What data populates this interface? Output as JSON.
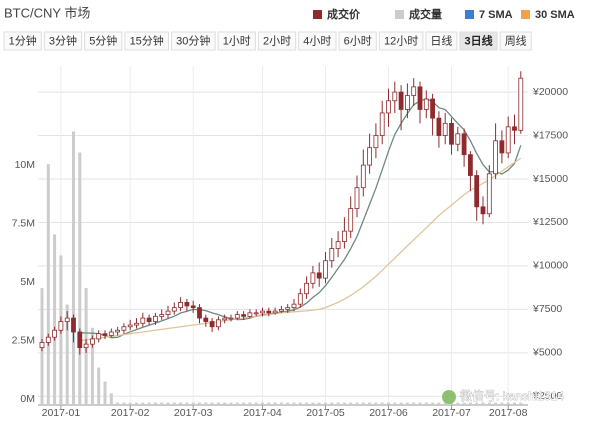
{
  "chart_data": {
    "type": "candlestick",
    "title": "BTC/CNY 市场",
    "timeframes": [
      "1分钟",
      "3分钟",
      "5分钟",
      "15分钟",
      "30分钟",
      "1小时",
      "2小时",
      "4小时",
      "6小时",
      "12小时",
      "日线",
      "3日线",
      "周线"
    ],
    "selected_timeframe_index": 11,
    "categories": [
      null,
      null,
      null,
      "2017-01",
      null,
      null,
      null,
      null,
      null,
      null,
      null,
      null,
      null,
      null,
      "2017-02",
      null,
      null,
      null,
      null,
      null,
      null,
      null,
      null,
      null,
      "2017-03",
      null,
      null,
      null,
      null,
      null,
      null,
      null,
      null,
      null,
      null,
      "2017-04",
      null,
      null,
      null,
      null,
      null,
      null,
      null,
      null,
      null,
      "2017-05",
      null,
      null,
      null,
      null,
      null,
      null,
      null,
      null,
      null,
      "2017-06",
      null,
      null,
      null,
      null,
      null,
      null,
      null,
      null,
      null,
      "2017-07",
      null,
      null,
      null,
      null,
      null,
      null,
      null,
      null,
      "2017-08",
      null,
      null
    ],
    "candles": {
      "name": "成交价",
      "color": "#8e2b2e",
      "up_color": "#ffffff",
      "open": [
        5300,
        5600,
        5900,
        6300,
        6800,
        7000,
        6200,
        5300,
        5500,
        5800,
        6100,
        6000,
        6200,
        6300,
        6500,
        6600,
        6700,
        7000,
        6800,
        7100,
        7200,
        7400,
        7600,
        7900,
        7700,
        7600,
        7000,
        6800,
        6500,
        6900,
        7000,
        7000,
        7200,
        7100,
        7300,
        7300,
        7400,
        7300,
        7400,
        7500,
        7600,
        7800,
        8400,
        9000,
        9600,
        9300,
        10300,
        11000,
        11400,
        12000,
        13300,
        14500,
        15800,
        16800,
        17500,
        18800,
        19500,
        20000,
        19000,
        19800,
        20300,
        19000,
        19600,
        18500,
        17500,
        18200,
        17000,
        17600,
        16400,
        15200,
        13400,
        13000,
        15300,
        17200,
        16500,
        18000,
        17800
      ],
      "high": [
        5800,
        6100,
        6500,
        7100,
        7400,
        7200,
        6400,
        5800,
        6000,
        6300,
        6300,
        6400,
        6500,
        6700,
        6900,
        7000,
        7300,
        7200,
        7300,
        7500,
        7700,
        7900,
        8200,
        8100,
        8000,
        7800,
        7200,
        7000,
        7100,
        7200,
        7200,
        7400,
        7400,
        7500,
        7500,
        7600,
        7600,
        7600,
        7700,
        7800,
        8100,
        8700,
        9400,
        10000,
        10200,
        10800,
        11600,
        12000,
        12800,
        14000,
        15200,
        16700,
        17600,
        18200,
        19500,
        20200,
        20600,
        20400,
        20500,
        20800,
        20600,
        20100,
        19900,
        18900,
        18800,
        18500,
        18000,
        17900,
        16600,
        15500,
        14000,
        15800,
        18200,
        17800,
        18600,
        18700,
        21200
      ],
      "low": [
        5100,
        5400,
        5700,
        6100,
        6300,
        5600,
        4900,
        5000,
        5300,
        5600,
        5800,
        5900,
        6000,
        6100,
        6300,
        6400,
        6500,
        6600,
        6600,
        6900,
        7000,
        7200,
        7400,
        7400,
        7300,
        6700,
        6500,
        6200,
        6300,
        6700,
        6800,
        6900,
        6900,
        7000,
        7100,
        7100,
        7100,
        7200,
        7300,
        7300,
        7400,
        7600,
        8100,
        8700,
        8800,
        9000,
        9900,
        10500,
        11000,
        11600,
        12800,
        14000,
        15300,
        16200,
        17000,
        18000,
        18800,
        17800,
        18500,
        19200,
        18200,
        18500,
        17500,
        16800,
        17000,
        16400,
        16600,
        15700,
        14300,
        12600,
        12400,
        12800,
        15000,
        15900,
        16200,
        17000,
        17600
      ],
      "close": [
        5600,
        5900,
        6300,
        6800,
        7000,
        6200,
        5300,
        5500,
        5800,
        6100,
        6000,
        6200,
        6300,
        6500,
        6600,
        6700,
        7000,
        6800,
        7100,
        7200,
        7400,
        7600,
        7900,
        7700,
        7600,
        7000,
        6800,
        6500,
        6900,
        7000,
        7000,
        7200,
        7100,
        7300,
        7300,
        7400,
        7300,
        7400,
        7500,
        7600,
        7800,
        8400,
        9000,
        9600,
        9300,
        10300,
        11000,
        11400,
        12000,
        13300,
        14500,
        15800,
        16800,
        17500,
        18800,
        19500,
        20000,
        19000,
        19800,
        20300,
        19000,
        19600,
        18500,
        17500,
        18200,
        17000,
        17600,
        16400,
        15200,
        13400,
        13000,
        15300,
        17200,
        16500,
        18000,
        17800,
        20800
      ]
    },
    "volume": {
      "name": "成交量",
      "color": "#cccccc",
      "axis": "y2",
      "values": [
        5.0,
        10.3,
        7.3,
        6.4,
        4.3,
        11.7,
        10.8,
        5.0,
        3.3,
        1.6,
        1.0,
        0.5,
        0.1,
        0.1,
        0.1,
        0.1,
        0.1,
        0.1,
        0.1,
        0.1,
        0.1,
        0.1,
        0.1,
        0.1,
        0.1,
        0.1,
        0.1,
        0.1,
        0.1,
        0.1,
        0.1,
        0.1,
        0.1,
        0.1,
        0.1,
        0.1,
        0.1,
        0.1,
        0.1,
        0.1,
        0.1,
        0.1,
        0.1,
        0.1,
        0.1,
        0.1,
        0.1,
        0.1,
        0.1,
        0.1,
        0.1,
        0.1,
        0.1,
        0.1,
        0.1,
        0.1,
        0.1,
        0.1,
        0.1,
        0.1,
        0.1,
        0.1,
        0.1,
        0.1,
        0.1,
        0.1,
        0.1,
        0.1,
        0.1,
        0.1,
        0.1,
        0.1,
        0.1,
        0.1,
        0.1,
        0.1,
        0.1
      ]
    },
    "series": [
      {
        "name": "7 SMA",
        "color": "#3b7fd4",
        "line_color": "#6d8a7c",
        "values": [
          null,
          null,
          null,
          null,
          null,
          null,
          6160,
          6140,
          6130,
          6100,
          5990,
          5870,
          5890,
          6060,
          6210,
          6340,
          6470,
          6590,
          6710,
          6840,
          6970,
          7110,
          7290,
          7390,
          7500,
          7490,
          7430,
          7300,
          7200,
          7070,
          6970,
          6910,
          6930,
          7000,
          7110,
          7190,
          7230,
          7290,
          7330,
          7400,
          7470,
          7630,
          7860,
          8190,
          8460,
          8860,
          9340,
          9860,
          10370,
          10990,
          11690,
          12610,
          13540,
          14470,
          15530,
          16600,
          17560,
          18200,
          18770,
          19270,
          19490,
          19600,
          19460,
          19100,
          18990,
          18590,
          18200,
          17830,
          17200,
          16470,
          15830,
          15410,
          15440,
          15290,
          15510,
          15890,
          16940
        ]
      },
      {
        "name": "30 SMA",
        "color": "#f0a34a",
        "line_color": "#e3c49a",
        "values": [
          null,
          null,
          null,
          null,
          null,
          null,
          5700,
          5750,
          5800,
          5850,
          5900,
          5950,
          6000,
          6050,
          6100,
          6150,
          6200,
          6250,
          6300,
          6350,
          6400,
          6450,
          6500,
          6550,
          6600,
          6650,
          6700,
          6750,
          6800,
          6850,
          6900,
          6950,
          7000,
          7050,
          7100,
          7150,
          7200,
          7250,
          7300,
          7330,
          7360,
          7390,
          7420,
          7460,
          7500,
          7600,
          7750,
          7900,
          8100,
          8300,
          8550,
          8800,
          9100,
          9400,
          9750,
          10100,
          10450,
          10800,
          11150,
          11500,
          11850,
          12200,
          12550,
          12900,
          13200,
          13500,
          13800,
          14100,
          14350,
          14550,
          14750,
          14950,
          15200,
          15450,
          15700,
          15950,
          16200
        ]
      }
    ],
    "ylim": [
      2000,
      21500
    ],
    "yticks": [
      {
        "value": 2500,
        "label": "¥2500"
      },
      {
        "value": 5000,
        "label": "¥5000"
      },
      {
        "value": 7500,
        "label": "¥7500"
      },
      {
        "value": 10000,
        "label": "¥10000"
      },
      {
        "value": 12500,
        "label": "¥12500"
      },
      {
        "value": 15000,
        "label": "¥15000"
      },
      {
        "value": 17500,
        "label": "¥17500"
      },
      {
        "value": 20000,
        "label": "¥20000"
      }
    ],
    "y2lim": [
      0,
      14.5
    ],
    "y2ticks": [
      {
        "value": 0,
        "label": "0M"
      },
      {
        "value": 2.5,
        "label": "2.5M"
      },
      {
        "value": 5,
        "label": "5M"
      },
      {
        "value": 7.5,
        "label": "7.5M"
      },
      {
        "value": 10,
        "label": "10M"
      }
    ],
    "grid": true,
    "watermark": "微信号: kanshi1314"
  }
}
